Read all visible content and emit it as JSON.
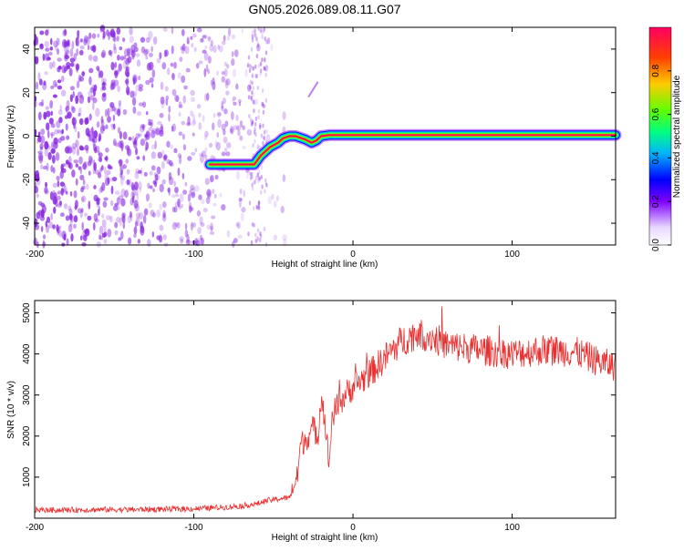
{
  "title": "GN05.2026.089.08.11.G07",
  "chart_data": [
    {
      "type": "heatmap",
      "name": "spectrogram",
      "xlabel": "Height of straight line (km)",
      "ylabel": "Frequency (Hz)",
      "xlim": [
        -200,
        165
      ],
      "ylim": [
        -50,
        50
      ],
      "xticks": [
        -200,
        -100,
        0,
        100
      ],
      "xtick_labels": [
        "-200",
        "-100",
        "0",
        "100"
      ],
      "yticks": [
        -40,
        -20,
        0,
        20,
        40
      ],
      "ytick_labels": [
        "-40",
        "-20",
        "0",
        "20",
        "40"
      ],
      "colorbar": {
        "label": "Normalized spectral amplitude",
        "range": [
          0,
          1
        ],
        "ticks": [
          0,
          0.2,
          0.4,
          0.6,
          0.8
        ],
        "tick_labels": [
          "0.0",
          "0.2",
          "0.4",
          "0.6",
          "0.8"
        ],
        "colors": [
          "#ffffff",
          "#7f00ff",
          "#0000ff",
          "#00b4ff",
          "#00ff80",
          "#80ff00",
          "#ffcc00",
          "#ff4000",
          "#ff0060"
        ]
      },
      "ridge": {
        "height_km": [
          -90,
          -85,
          -70,
          -62,
          -58,
          -52,
          -47,
          -44,
          -40,
          -36,
          -30,
          -26,
          -23,
          -20,
          -15,
          -5,
          0,
          40,
          80,
          120,
          165
        ],
        "frequency_hz": [
          -13,
          -13,
          -13,
          -13,
          -9,
          -5,
          -3,
          -1,
          0,
          0,
          -1.5,
          -3,
          -2,
          0,
          0.5,
          0.5,
          0.5,
          0.5,
          0.5,
          0.5,
          0.5
        ]
      },
      "noise_region_km": [
        -200,
        -60
      ],
      "noise_color": "#8a2be2"
    },
    {
      "type": "line",
      "name": "snr",
      "xlabel": "Height of straight line (km)",
      "ylabel": "SNR (10 * v/v)",
      "xlim": [
        -200,
        165
      ],
      "ylim": [
        0,
        5300
      ],
      "xticks": [
        -200,
        -100,
        0,
        100
      ],
      "xtick_labels": [
        "-200",
        "-100",
        "0",
        "100"
      ],
      "yticks": [
        1000,
        2000,
        3000,
        4000,
        5000
      ],
      "ytick_labels": [
        "1000",
        "2000",
        "3000",
        "4000",
        "5000"
      ],
      "series": [
        {
          "name": "SNR",
          "color": "#e83030",
          "x": [
            -200,
            -180,
            -160,
            -140,
            -120,
            -100,
            -90,
            -80,
            -70,
            -60,
            -55,
            -50,
            -45,
            -40,
            -35,
            -33,
            -30,
            -25,
            -22,
            -20,
            -18,
            -15,
            -13,
            -10,
            -5,
            0,
            10,
            20,
            30,
            40,
            50,
            60,
            80,
            100,
            120,
            140,
            155,
            165
          ],
          "y": [
            200,
            200,
            210,
            210,
            220,
            230,
            250,
            270,
            300,
            350,
            420,
            450,
            480,
            500,
            1000,
            1800,
            1900,
            2200,
            2000,
            3000,
            2500,
            1300,
            2500,
            2700,
            3000,
            3200,
            3500,
            3900,
            4300,
            4500,
            4400,
            4200,
            4100,
            4000,
            4100,
            4050,
            3800,
            3700
          ]
        }
      ]
    }
  ]
}
